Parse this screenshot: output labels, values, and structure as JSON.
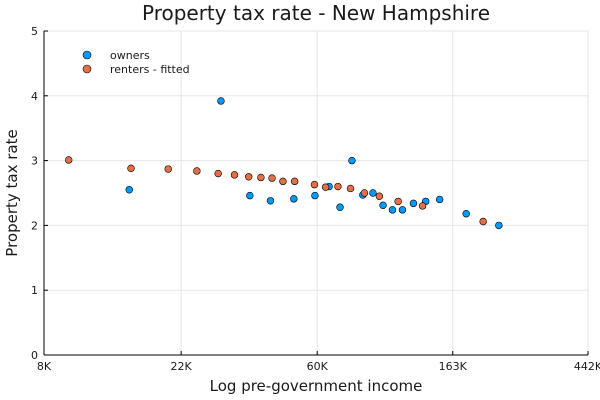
{
  "chart_data": {
    "type": "scatter",
    "title": "Property tax rate - New Hampshire",
    "xlabel": "Log pre-government income",
    "ylabel": "Property tax rate",
    "x_scale": "log",
    "xlim": [
      8000,
      442000
    ],
    "ylim": [
      0,
      5
    ],
    "x_ticks": [
      {
        "value": 8000,
        "label": "8K"
      },
      {
        "value": 22000,
        "label": "22K"
      },
      {
        "value": 60000,
        "label": "60K"
      },
      {
        "value": 163000,
        "label": "163K"
      },
      {
        "value": 442000,
        "label": "442K"
      }
    ],
    "y_ticks": [
      {
        "value": 0,
        "label": "0"
      },
      {
        "value": 1,
        "label": "1"
      },
      {
        "value": 2,
        "label": "2"
      },
      {
        "value": 3,
        "label": "3"
      },
      {
        "value": 4,
        "label": "4"
      },
      {
        "value": 5,
        "label": "5"
      }
    ],
    "grid": true,
    "legend_position": "top-left",
    "series": [
      {
        "name": "owners",
        "color": "#009AFA",
        "points": [
          {
            "x": 15000,
            "y": 2.55
          },
          {
            "x": 29500,
            "y": 3.92
          },
          {
            "x": 36500,
            "y": 2.46
          },
          {
            "x": 42500,
            "y": 2.38
          },
          {
            "x": 50500,
            "y": 2.41
          },
          {
            "x": 59000,
            "y": 2.46
          },
          {
            "x": 65500,
            "y": 2.6
          },
          {
            "x": 71000,
            "y": 2.28
          },
          {
            "x": 77500,
            "y": 3.0
          },
          {
            "x": 84000,
            "y": 2.47
          },
          {
            "x": 90500,
            "y": 2.5
          },
          {
            "x": 97500,
            "y": 2.31
          },
          {
            "x": 104500,
            "y": 2.24
          },
          {
            "x": 112500,
            "y": 2.24
          },
          {
            "x": 122000,
            "y": 2.34
          },
          {
            "x": 133500,
            "y": 2.37
          },
          {
            "x": 148000,
            "y": 2.4
          },
          {
            "x": 180000,
            "y": 2.18
          },
          {
            "x": 229000,
            "y": 2.0
          }
        ]
      },
      {
        "name": "renters - fitted",
        "color": "#E26F46",
        "points": [
          {
            "x": 9600,
            "y": 3.01
          },
          {
            "x": 15200,
            "y": 2.88
          },
          {
            "x": 20000,
            "y": 2.87
          },
          {
            "x": 24700,
            "y": 2.84
          },
          {
            "x": 28900,
            "y": 2.8
          },
          {
            "x": 32600,
            "y": 2.78
          },
          {
            "x": 36200,
            "y": 2.75
          },
          {
            "x": 39600,
            "y": 2.74
          },
          {
            "x": 43000,
            "y": 2.73
          },
          {
            "x": 46600,
            "y": 2.68
          },
          {
            "x": 50800,
            "y": 2.68
          },
          {
            "x": 58800,
            "y": 2.63
          },
          {
            "x": 63800,
            "y": 2.59
          },
          {
            "x": 69900,
            "y": 2.6
          },
          {
            "x": 76700,
            "y": 2.57
          },
          {
            "x": 85000,
            "y": 2.5
          },
          {
            "x": 94900,
            "y": 2.45
          },
          {
            "x": 109000,
            "y": 2.37
          },
          {
            "x": 130500,
            "y": 2.3
          },
          {
            "x": 204000,
            "y": 2.06
          }
        ]
      }
    ]
  }
}
